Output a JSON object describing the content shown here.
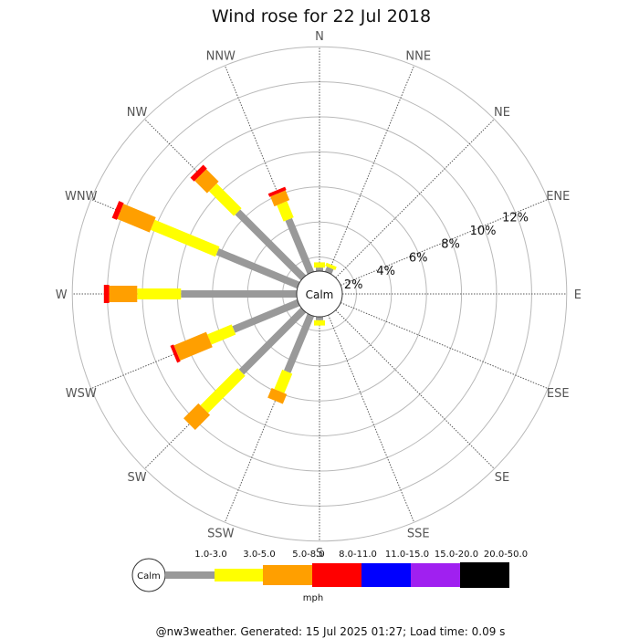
{
  "title": "Wind rose for 22 Jul 2018",
  "footer": "@nw3weather. Generated: 15 Jul 2025 01:27; Load time: 0.09 s",
  "calm_label": "Calm",
  "unit_label": "mph",
  "directions": [
    "N",
    "NNE",
    "NE",
    "ENE",
    "E",
    "ESE",
    "SE",
    "SSE",
    "S",
    "SSW",
    "SW",
    "WSW",
    "W",
    "WNW",
    "NW",
    "NNW"
  ],
  "percent_ticks": [
    "2%",
    "4%",
    "6%",
    "8%",
    "10%",
    "12%"
  ],
  "speed_bins": [
    {
      "label": "1.0-3.0",
      "color": "#999999"
    },
    {
      "label": "3.0-5.0",
      "color": "#ffff00"
    },
    {
      "label": "5.0-8.0",
      "color": "#ff9f00"
    },
    {
      "label": "8.0-11.0",
      "color": "#ff0000"
    },
    {
      "label": "11.0-15.0",
      "color": "#0000ff"
    },
    {
      "label": "15.0-20.0",
      "color": "#a020f0"
    },
    {
      "label": "20.0-50.0",
      "color": "#000000"
    }
  ],
  "chart_data": {
    "type": "wind-rose",
    "radial_unit": "percent",
    "rlim": [
      0,
      14
    ],
    "angle_start": "N at top, clockwise",
    "legend_placement": "bottom",
    "sectors": [
      {
        "dir": "N",
        "values": [
          0.2,
          0.3,
          0,
          0,
          0,
          0,
          0
        ]
      },
      {
        "dir": "NNE",
        "values": [
          0.3,
          0.2,
          0,
          0,
          0,
          0,
          0
        ]
      },
      {
        "dir": "NE",
        "values": [
          0,
          0,
          0,
          0,
          0,
          0,
          0
        ]
      },
      {
        "dir": "ENE",
        "values": [
          0,
          0,
          0,
          0,
          0,
          0,
          0
        ]
      },
      {
        "dir": "E",
        "values": [
          0,
          0,
          0,
          0,
          0,
          0,
          0
        ]
      },
      {
        "dir": "ESE",
        "values": [
          0,
          0,
          0,
          0,
          0,
          0,
          0
        ]
      },
      {
        "dir": "SE",
        "values": [
          0,
          0,
          0,
          0,
          0,
          0,
          0
        ]
      },
      {
        "dir": "SSE",
        "values": [
          0,
          0,
          0,
          0,
          0,
          0,
          0
        ]
      },
      {
        "dir": "S",
        "values": [
          0.2,
          0.3,
          0,
          0,
          0,
          0,
          0
        ]
      },
      {
        "dir": "SSW",
        "values": [
          3.5,
          1.2,
          0.6,
          0,
          0,
          0,
          0
        ]
      },
      {
        "dir": "SW",
        "values": [
          5.0,
          3.0,
          1.2,
          0,
          0,
          0,
          0
        ]
      },
      {
        "dir": "WSW",
        "values": [
          4.0,
          1.5,
          2.0,
          0.2,
          0,
          0,
          0
        ]
      },
      {
        "dir": "W",
        "values": [
          6.6,
          2.5,
          1.6,
          0.3,
          0,
          0,
          0
        ]
      },
      {
        "dir": "WNW",
        "values": [
          5.0,
          4.0,
          2.0,
          0.3,
          0,
          0,
          0
        ]
      },
      {
        "dir": "NW",
        "values": [
          5.3,
          2.0,
          1.0,
          0.3,
          0,
          0,
          0
        ]
      },
      {
        "dir": "NNW",
        "values": [
          3.3,
          1.0,
          0.6,
          0.2,
          0,
          0,
          0
        ]
      }
    ]
  }
}
